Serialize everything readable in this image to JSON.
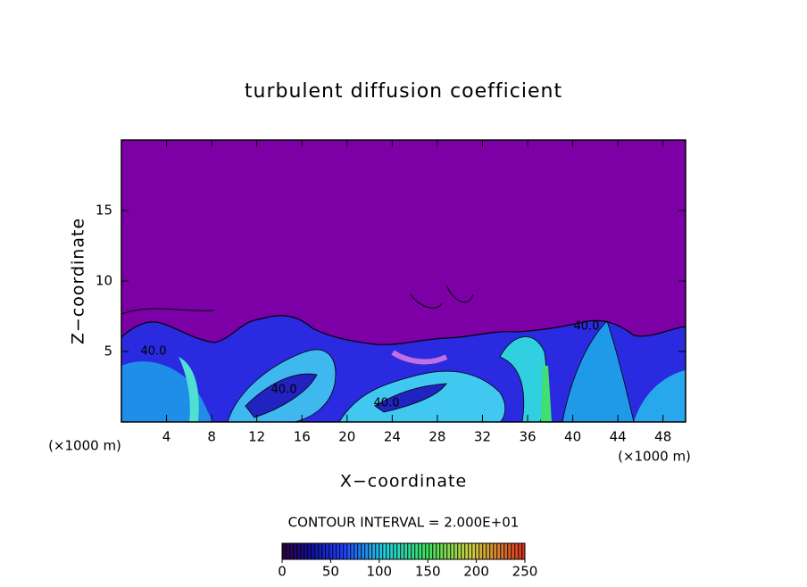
{
  "chart_data": {
    "type": "contour",
    "title": "turbulent diffusion coefficient",
    "xlabel": "X−coordinate",
    "ylabel": "Z−coordinate",
    "x_unit_left": "(×1000 m)",
    "x_unit_right": "(×1000 m)",
    "xlim": [
      0,
      50
    ],
    "xticks": [
      4,
      8,
      12,
      16,
      20,
      24,
      28,
      32,
      36,
      40,
      44,
      48
    ],
    "ylim": [
      0,
      20
    ],
    "yticks": [
      5,
      10,
      15
    ],
    "contour_labels": [
      "40.0",
      "40.0",
      "40.0",
      "40.0"
    ],
    "contour_interval": "CONTOUR INTERVAL = 2.000E+01",
    "colorbar": {
      "lim": [
        0,
        250
      ],
      "ticks": [
        0,
        50,
        100,
        150,
        200,
        250
      ]
    }
  }
}
